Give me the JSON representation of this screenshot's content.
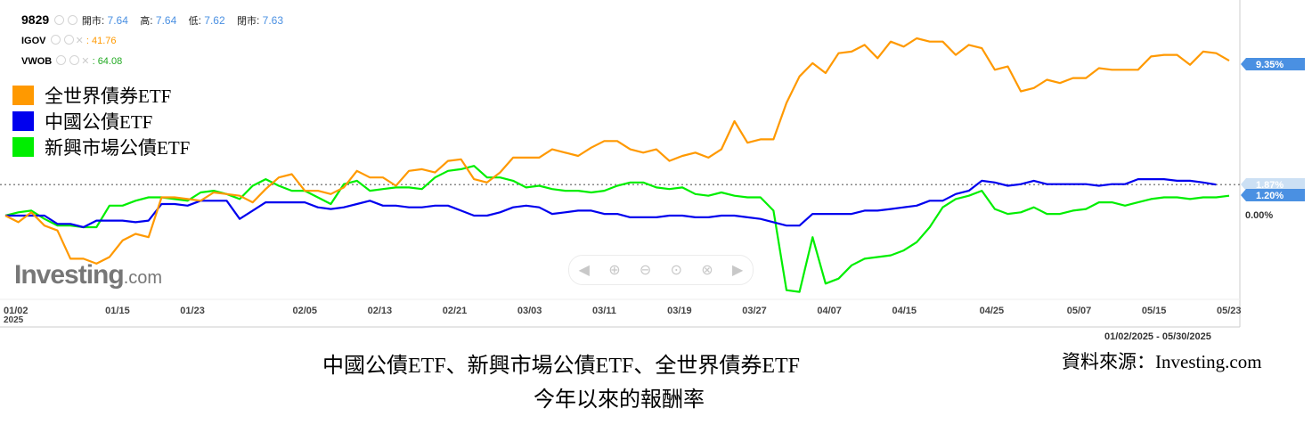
{
  "header": {
    "symbol": "9829",
    "open_label": "開市",
    "open_value": "7.64",
    "high_label": "高",
    "high_value": "7.64",
    "low_label": "低",
    "low_value": "7.62",
    "close_label": "閉市",
    "close_value": "7.63",
    "row2_symbol": "IGOV",
    "row2_value": ": 41.76",
    "row3_symbol": "VWOB",
    "row3_value": ": 64.08"
  },
  "legend": [
    {
      "label": "全世界債券ETF",
      "color": "#FF9900"
    },
    {
      "label": "中國公債ETF",
      "color": "#0000EE"
    },
    {
      "label": "新興市場公債ETF",
      "color": "#00EE00"
    }
  ],
  "logo": {
    "main": "Investing",
    "suffix": ".com"
  },
  "date_range": "01/02/2025 - 05/30/2025",
  "caption": {
    "title_line1": "中國公債ETF、新興市場公債ETF、全世界債券ETF",
    "title_line2": "今年以來的報酬率",
    "source": "資料來源：Investing.com"
  },
  "chart_data": {
    "type": "line",
    "x_tick_labels": [
      "01/02",
      "01/15",
      "01/23",
      "02/05",
      "02/13",
      "02/21",
      "03/03",
      "03/11",
      "03/19",
      "03/27",
      "04/07",
      "04/15",
      "04/25",
      "05/07",
      "05/15",
      "05/23"
    ],
    "x_tick_sublabel": "2025",
    "y_unit": "%",
    "ylim": [
      -6,
      12
    ],
    "y_labels": {
      "zero": "0.00%"
    },
    "series": [
      {
        "name": "全世界債券ETF",
        "color": "#FF9900",
        "end_label": "9.35%",
        "label_color": "#4A90E2",
        "values": [
          0,
          -0.4,
          0.2,
          -0.6,
          -0.9,
          -2.6,
          -2.6,
          -2.9,
          -2.5,
          -1.5,
          -1.1,
          -1.3,
          1.1,
          1.1,
          1,
          0.9,
          1.4,
          1.3,
          1.2,
          0.8,
          1.6,
          2.3,
          2.5,
          1.5,
          1.5,
          1.3,
          1.7,
          2.7,
          2.3,
          2.3,
          1.8,
          2.7,
          2.8,
          2.6,
          3.3,
          3.4,
          2.2,
          2,
          2.6,
          3.5,
          3.5,
          3.5,
          4,
          3.8,
          3.6,
          4.1,
          4.5,
          4.5,
          4,
          3.8,
          4,
          3.3,
          3.6,
          3.8,
          3.5,
          4,
          5.7,
          4.4,
          4.6,
          4.6,
          6.8,
          8.4,
          9.2,
          8.6,
          9.8,
          9.9,
          10.3,
          9.5,
          10.5,
          10.2,
          10.7,
          10.5,
          10.5,
          9.7,
          10.3,
          10.1,
          8.8,
          9,
          7.5,
          7.7,
          8.2,
          8,
          8.3,
          8.3,
          8.9,
          8.8,
          8.8,
          8.8,
          9.6,
          9.7,
          9.7,
          9.1,
          9.9,
          9.8,
          9.35
        ]
      },
      {
        "name": "中國公債ETF",
        "color": "#0000EE",
        "end_label": "1.87%",
        "label_color": "#CCE0F4",
        "values": [
          0,
          0,
          0,
          0,
          -0.5,
          -0.5,
          -0.7,
          -0.3,
          -0.3,
          -0.3,
          -0.4,
          -0.3,
          0.7,
          0.7,
          0.6,
          0.9,
          0.9,
          0.9,
          -0.2,
          0.3,
          0.8,
          0.8,
          0.8,
          0.8,
          0.5,
          0.4,
          0.5,
          0.7,
          0.9,
          0.6,
          0.6,
          0.5,
          0.5,
          0.6,
          0.6,
          0.3,
          0,
          0,
          0.2,
          0.5,
          0.6,
          0.5,
          0.1,
          0.2,
          0.3,
          0.3,
          0.1,
          0.1,
          -0.1,
          -0.1,
          -0.1,
          0,
          0,
          -0.1,
          -0.1,
          0,
          0,
          -0.1,
          -0.2,
          -0.4,
          -0.6,
          -0.6,
          0.1,
          0.1,
          0.1,
          0.1,
          0.3,
          0.3,
          0.4,
          0.5,
          0.6,
          0.9,
          0.9,
          1.3,
          1.5,
          2.1,
          2,
          1.8,
          1.9,
          2.1,
          1.9,
          1.9,
          1.9,
          1.9,
          1.8,
          1.9,
          1.9,
          2.2,
          2.2,
          2.2,
          2.1,
          2.1,
          2.0,
          1.87
        ]
      },
      {
        "name": "新興市場公債ETF",
        "color": "#00EE00",
        "end_label": "1.20%",
        "label_color": "#4A90E2",
        "values": [
          0,
          0.2,
          0.3,
          -0.2,
          -0.6,
          -0.6,
          -0.7,
          -0.7,
          0.6,
          0.6,
          0.9,
          1.1,
          1.1,
          1.0,
          0.9,
          1.4,
          1.5,
          1.3,
          1.0,
          1.8,
          2.2,
          1.8,
          1.5,
          1.5,
          1.1,
          0.7,
          1.9,
          2.1,
          1.5,
          1.6,
          1.7,
          1.7,
          1.6,
          2.3,
          2.7,
          2.8,
          3.0,
          2.3,
          2.3,
          2.1,
          1.7,
          1.8,
          1.6,
          1.5,
          1.5,
          1.4,
          1.5,
          1.8,
          2.0,
          2.0,
          1.7,
          1.6,
          1.7,
          1.3,
          1.2,
          1.4,
          1.2,
          1.1,
          1.1,
          0.3,
          -4.5,
          -4.6,
          -1.3,
          -4.1,
          -3.8,
          -3,
          -2.6,
          -2.5,
          -2.4,
          -2.1,
          -1.6,
          -0.7,
          0.5,
          1.0,
          1.2,
          1.5,
          0.4,
          0.1,
          0.2,
          0.5,
          0.1,
          0.1,
          0.3,
          0.4,
          0.8,
          0.8,
          0.6,
          0.8,
          1.0,
          1.1,
          1.1,
          1.0,
          1.1,
          1.1,
          1.2
        ]
      }
    ]
  }
}
